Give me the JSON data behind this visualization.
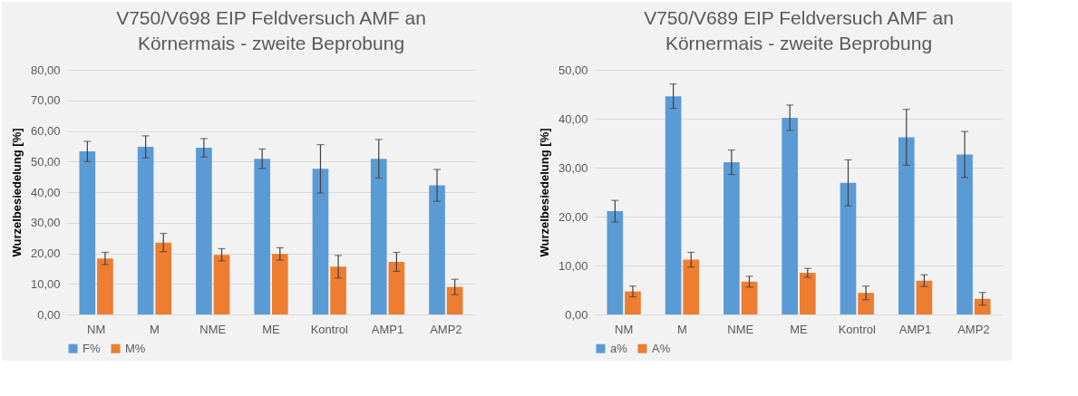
{
  "chart_data": [
    {
      "type": "bar",
      "title": "V750/V698 EIP Feldversuch AMF an Körnermais - zweite Beprobung",
      "ylabel": "Wurzelbesiedelung [%]",
      "categories": [
        "NM",
        "M",
        "NME",
        "ME",
        "Kontrol",
        "AMP1",
        "AMP2"
      ],
      "series": [
        {
          "name": "F%",
          "color": "#5b9bd5",
          "values": [
            53.3,
            54.8,
            54.5,
            50.9,
            47.6,
            50.9,
            42.2
          ],
          "errors": [
            3.3,
            3.6,
            3.0,
            3.2,
            7.9,
            6.3,
            5.2
          ]
        },
        {
          "name": "M%",
          "color": "#ed7d31",
          "values": [
            18.3,
            23.5,
            19.5,
            19.8,
            15.6,
            17.2,
            9.0
          ],
          "errors": [
            2.0,
            3.0,
            2.0,
            2.0,
            3.7,
            3.1,
            2.5
          ]
        }
      ],
      "ylim": [
        0,
        80
      ],
      "yticks": [
        {
          "value": 0,
          "label": "0,00"
        },
        {
          "value": 10,
          "label": "10,00"
        },
        {
          "value": 20,
          "label": "20,00"
        },
        {
          "value": 30,
          "label": "30,00"
        },
        {
          "value": 40,
          "label": "40,00"
        },
        {
          "value": 50,
          "label": "50,00"
        },
        {
          "value": 60,
          "label": "60,00"
        },
        {
          "value": 70,
          "label": "70,00"
        },
        {
          "value": 80,
          "label": "80,00"
        }
      ],
      "grid": "y",
      "legend": "bottom"
    },
    {
      "type": "bar",
      "title": "V750/V689 EIP Feldversuch AMF an Körnermais - zweite Beprobung",
      "ylabel": "Wurzelbesiedelung [%]",
      "categories": [
        "NM",
        "M",
        "NME",
        "ME",
        "Kontrol",
        "AMP1",
        "AMP2"
      ],
      "series": [
        {
          "name": "a%",
          "color": "#5b9bd5",
          "values": [
            21.1,
            44.6,
            31.1,
            40.2,
            26.9,
            36.2,
            32.7
          ],
          "errors": [
            2.2,
            2.5,
            2.5,
            2.6,
            4.7,
            5.7,
            4.7
          ]
        },
        {
          "name": "A%",
          "color": "#ed7d31",
          "values": [
            4.7,
            11.2,
            6.7,
            8.5,
            4.4,
            6.9,
            3.2
          ],
          "errors": [
            1.1,
            1.5,
            1.1,
            0.9,
            1.4,
            1.2,
            1.3
          ]
        }
      ],
      "ylim": [
        0,
        50
      ],
      "yticks": [
        {
          "value": 0,
          "label": "0,00"
        },
        {
          "value": 10,
          "label": "10,00"
        },
        {
          "value": 20,
          "label": "20,00"
        },
        {
          "value": 30,
          "label": "30,00"
        },
        {
          "value": 40,
          "label": "40,00"
        },
        {
          "value": 50,
          "label": "50,00"
        }
      ],
      "grid": "y",
      "legend": "bottom"
    }
  ]
}
